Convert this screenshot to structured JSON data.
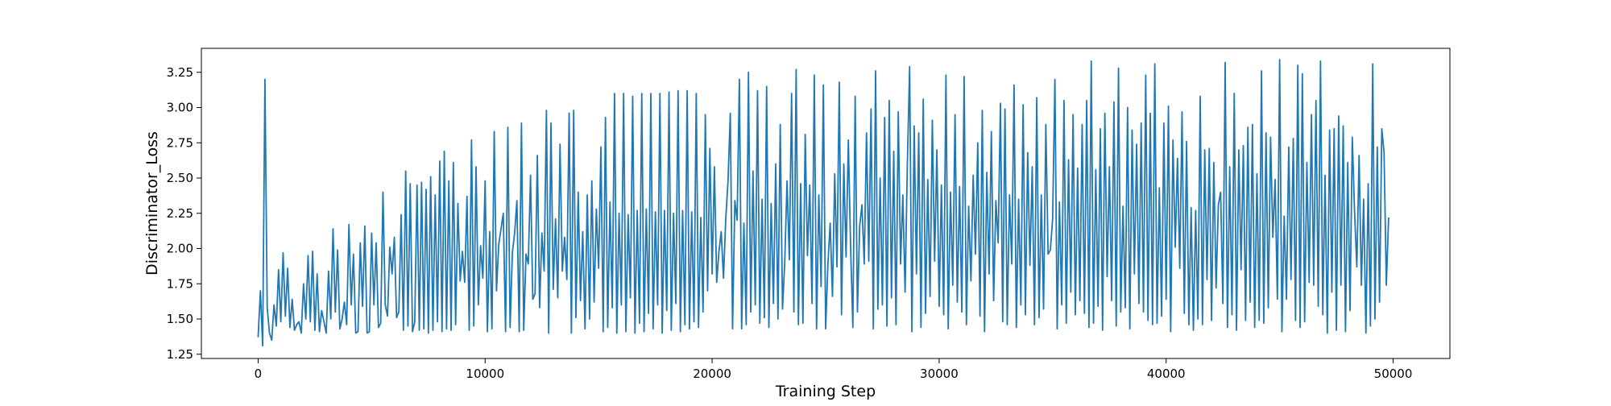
{
  "chart_data": {
    "type": "line",
    "title": "",
    "xlabel": "Training Step",
    "ylabel": "Discriminator_Loss",
    "xlim": [
      -2500,
      52500
    ],
    "ylim": [
      1.22,
      3.42
    ],
    "xticks": [
      0,
      10000,
      20000,
      30000,
      40000,
      50000
    ],
    "xtick_labels": [
      "0",
      "10000",
      "20000",
      "30000",
      "40000",
      "50000"
    ],
    "yticks": [
      1.25,
      1.5,
      1.75,
      2.0,
      2.25,
      2.5,
      2.75,
      3.0,
      3.25
    ],
    "ytick_labels": [
      "1.25",
      "1.50",
      "1.75",
      "2.00",
      "2.25",
      "2.50",
      "2.75",
      "3.00",
      "3.25"
    ],
    "grid": false,
    "color": "#1f77b4",
    "x_step": 100,
    "series": [
      {
        "values": [
          1.37,
          1.7,
          1.31,
          3.2,
          1.58,
          1.4,
          1.35,
          1.6,
          1.45,
          1.85,
          1.48,
          1.97,
          1.52,
          1.86,
          1.44,
          1.64,
          1.42,
          1.46,
          1.48,
          1.4,
          1.75,
          1.5,
          1.95,
          1.48,
          1.98,
          1.42,
          1.82,
          1.41,
          1.56,
          1.48,
          1.4,
          1.84,
          1.5,
          2.14,
          1.55,
          1.99,
          1.43,
          1.5,
          1.62,
          1.46,
          2.17,
          1.6,
          1.96,
          1.4,
          1.41,
          2.04,
          1.59,
          2.16,
          1.4,
          1.41,
          2.11,
          1.6,
          2.04,
          1.44,
          1.47,
          2.4,
          1.6,
          1.52,
          2.01,
          1.82,
          2.08,
          1.51,
          1.55,
          2.24,
          1.42,
          2.55,
          1.45,
          2.46,
          1.41,
          1.48,
          2.45,
          1.42,
          2.47,
          1.43,
          2.42,
          1.4,
          2.51,
          1.42,
          2.38,
          1.48,
          2.62,
          1.41,
          2.69,
          1.43,
          2.48,
          1.42,
          2.61,
          1.46,
          2.32,
          1.77,
          1.98,
          1.76,
          2.37,
          1.42,
          2.77,
          1.45,
          2.58,
          1.6,
          2.02,
          1.79,
          2.48,
          1.41,
          2.12,
          1.43,
          2.83,
          1.7,
          2.03,
          2.14,
          2.25,
          1.41,
          2.86,
          1.44,
          1.97,
          2.11,
          2.34,
          1.41,
          2.89,
          1.42,
          1.96,
          1.89,
          2.52,
          1.64,
          1.68,
          2.66,
          1.58,
          2.11,
          1.84,
          2.98,
          1.4,
          2.89,
          1.71,
          2.21,
          1.65,
          2.74,
          1.84,
          2.08,
          1.78,
          2.96,
          1.4,
          2.98,
          1.51,
          2.4,
          1.63,
          2.12,
          1.43,
          2.38,
          1.5,
          2.48,
          1.62,
          2.28,
          1.86,
          2.72,
          1.41,
          2.93,
          1.44,
          2.33,
          1.58,
          3.1,
          1.4,
          2.25,
          1.6,
          3.1,
          1.41,
          2.24,
          1.65,
          3.08,
          1.4,
          2.27,
          1.47,
          3.1,
          1.41,
          2.28,
          1.54,
          3.1,
          1.43,
          2.26,
          1.6,
          3.1,
          1.4,
          2.27,
          1.56,
          3.11,
          1.42,
          2.25,
          1.61,
          3.12,
          1.41,
          2.27,
          1.46,
          3.12,
          1.43,
          2.26,
          1.48,
          3.1,
          1.44,
          2.22,
          1.55,
          2.95,
          1.7,
          2.71,
          1.82,
          2.58,
          1.76,
          1.98,
          2.12,
          1.79,
          2.21,
          2.48,
          2.96,
          1.43,
          2.34,
          2.2,
          3.2,
          1.43,
          2.18,
          1.46,
          3.25,
          1.55,
          2.55,
          1.6,
          3.12,
          1.47,
          2.35,
          1.51,
          3.15,
          1.44,
          2.32,
          1.61,
          2.6,
          1.5,
          2.88,
          1.57,
          1.91,
          2.48,
          1.92,
          3.1,
          1.55,
          3.27,
          1.46,
          2.46,
          1.47,
          2.81,
          1.95,
          2.45,
          1.61,
          3.23,
          1.43,
          2.38,
          1.73,
          3.16,
          1.43,
          1.89,
          2.18,
          1.66,
          2.53,
          1.87,
          3.18,
          1.53,
          2.6,
          1.94,
          2.77,
          2.01,
          1.44,
          3.08,
          1.55,
          2.16,
          2.31,
          1.89,
          2.82,
          1.91,
          2.99,
          1.43,
          3.26,
          1.57,
          2.5,
          1.6,
          2.93,
          1.45,
          3.05,
          1.65,
          2.69,
          1.46,
          2.97,
          1.89,
          2.38,
          1.69,
          2.6,
          3.29,
          1.41,
          2.87,
          1.82,
          2.82,
          1.44,
          3.06,
          1.54,
          2.49,
          1.66,
          2.91,
          1.91,
          2.7,
          1.59,
          2.45,
          1.53,
          3.23,
          1.43,
          2.4,
          1.74,
          2.95,
          1.62,
          2.44,
          1.55,
          3.22,
          1.46,
          2.3,
          1.77,
          2.52,
          1.96,
          2.75,
          1.52,
          2.98,
          1.41,
          2.54,
          1.82,
          2.83,
          1.63,
          2.34,
          2.04,
          3.03,
          1.48,
          2.99,
          1.46,
          2.38,
          1.89,
          3.16,
          1.44,
          2.35,
          1.6,
          3.02,
          1.53,
          2.68,
          1.88,
          2.58,
          1.46,
          3.07,
          1.51,
          2.38,
          1.57,
          2.88,
          1.96,
          1.99,
          2.21,
          3.2,
          1.43,
          2.33,
          1.6,
          3.05,
          1.47,
          2.63,
          1.69,
          2.95,
          1.53,
          2.57,
          1.63,
          2.88,
          1.54,
          3.05,
          1.44,
          3.33,
          1.47,
          2.56,
          1.59,
          2.85,
          1.42,
          2.96,
          1.8,
          2.58,
          1.63,
          3.04,
          1.45,
          3.28,
          1.55,
          2.3,
          1.58,
          3.0,
          1.43,
          2.84,
          1.82,
          2.74,
          1.61,
          2.89,
          1.55,
          3.23,
          1.49,
          2.96,
          1.46,
          3.31,
          1.47,
          2.43,
          1.52,
          2.89,
          1.64,
          3.01,
          1.41,
          2.77,
          2.01,
          2.64,
          1.86,
          2.97,
          1.54,
          2.76,
          1.46,
          2.29,
          1.42,
          2.27,
          1.5,
          3.08,
          1.46,
          2.7,
          1.78,
          2.71,
          1.49,
          2.61,
          1.72,
          2.31,
          2.4,
          1.61,
          3.32,
          1.44,
          2.58,
          1.53,
          3.1,
          1.42,
          2.7,
          1.85,
          2.73,
          1.49,
          2.86,
          1.62,
          2.88,
          1.44,
          2.53,
          1.49,
          3.26,
          1.47,
          2.82,
          1.58,
          2.79,
          2.08,
          2.49,
          1.64,
          3.34,
          1.41,
          2.23,
          1.64,
          2.72,
          1.78,
          2.78,
          1.49,
          3.3,
          1.44,
          3.24,
          1.48,
          2.61,
          1.76,
          2.95,
          1.74,
          3.05,
          1.59,
          3.33,
          1.53,
          2.52,
          1.4,
          2.84,
          1.69,
          2.85,
          1.42,
          2.94,
          1.74,
          2.87,
          1.41,
          2.61,
          1.56,
          2.79,
          2.26,
          1.87,
          2.66,
          1.74,
          2.35,
          1.4,
          2.46,
          1.45,
          3.31,
          1.5,
          2.72,
          1.62,
          2.85,
          2.68,
          1.74,
          2.22
        ]
      }
    ]
  }
}
